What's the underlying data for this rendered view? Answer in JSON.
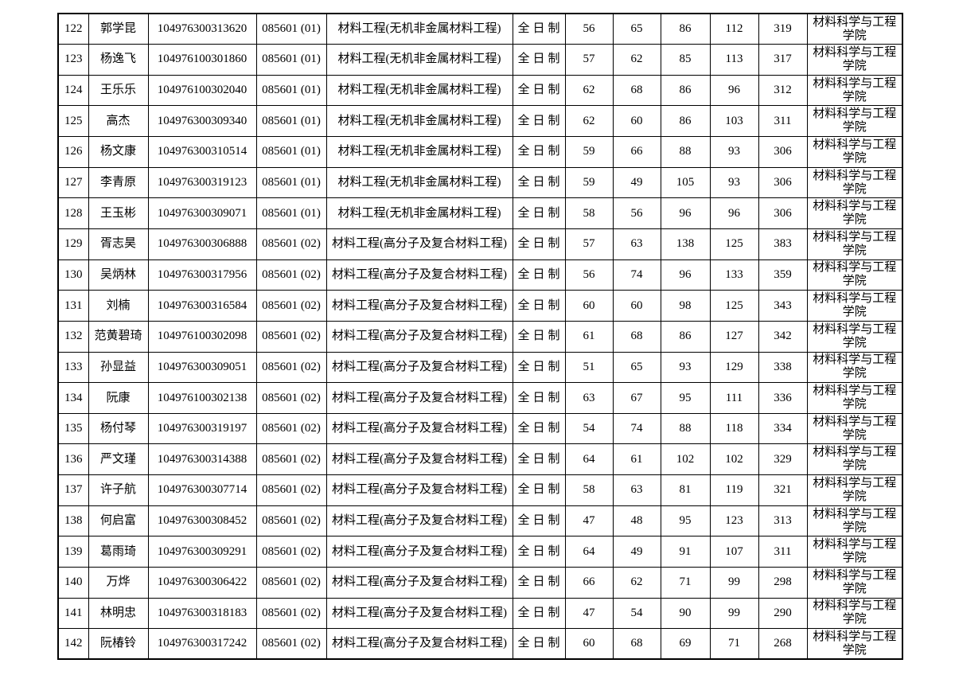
{
  "page": {
    "background_color": "#ffffff",
    "text_color": "#000000",
    "border_color": "#000000"
  },
  "table": {
    "column_fields": [
      "no",
      "name",
      "candidate_id",
      "program_code",
      "major",
      "study_mode",
      "score1",
      "score2",
      "score3",
      "score4",
      "total",
      "college"
    ],
    "rows": [
      {
        "no": "122",
        "name": "郭学昆",
        "candidate_id": "104976300313620",
        "program_code": "085601 (01)",
        "major": "材料工程(无机非金属材料工程)",
        "study_mode": "全日制",
        "score1": "56",
        "score2": "65",
        "score3": "86",
        "score4": "112",
        "total": "319",
        "college": "材料科学与工程学院"
      },
      {
        "no": "123",
        "name": "杨逸飞",
        "candidate_id": "104976100301860",
        "program_code": "085601 (01)",
        "major": "材料工程(无机非金属材料工程)",
        "study_mode": "全日制",
        "score1": "57",
        "score2": "62",
        "score3": "85",
        "score4": "113",
        "total": "317",
        "college": "材料科学与工程学院"
      },
      {
        "no": "124",
        "name": "王乐乐",
        "candidate_id": "104976100302040",
        "program_code": "085601 (01)",
        "major": "材料工程(无机非金属材料工程)",
        "study_mode": "全日制",
        "score1": "62",
        "score2": "68",
        "score3": "86",
        "score4": "96",
        "total": "312",
        "college": "材料科学与工程学院"
      },
      {
        "no": "125",
        "name": "高杰",
        "candidate_id": "104976300309340",
        "program_code": "085601 (01)",
        "major": "材料工程(无机非金属材料工程)",
        "study_mode": "全日制",
        "score1": "62",
        "score2": "60",
        "score3": "86",
        "score4": "103",
        "total": "311",
        "college": "材料科学与工程学院"
      },
      {
        "no": "126",
        "name": "杨文康",
        "candidate_id": "104976300310514",
        "program_code": "085601 (01)",
        "major": "材料工程(无机非金属材料工程)",
        "study_mode": "全日制",
        "score1": "59",
        "score2": "66",
        "score3": "88",
        "score4": "93",
        "total": "306",
        "college": "材料科学与工程学院"
      },
      {
        "no": "127",
        "name": "李青原",
        "candidate_id": "104976300319123",
        "program_code": "085601 (01)",
        "major": "材料工程(无机非金属材料工程)",
        "study_mode": "全日制",
        "score1": "59",
        "score2": "49",
        "score3": "105",
        "score4": "93",
        "total": "306",
        "college": "材料科学与工程学院"
      },
      {
        "no": "128",
        "name": "王玉彬",
        "candidate_id": "104976300309071",
        "program_code": "085601 (01)",
        "major": "材料工程(无机非金属材料工程)",
        "study_mode": "全日制",
        "score1": "58",
        "score2": "56",
        "score3": "96",
        "score4": "96",
        "total": "306",
        "college": "材料科学与工程学院"
      },
      {
        "no": "129",
        "name": "胥志昊",
        "candidate_id": "104976300306888",
        "program_code": "085601 (02)",
        "major": "材料工程(高分子及复合材料工程)",
        "study_mode": "全日制",
        "score1": "57",
        "score2": "63",
        "score3": "138",
        "score4": "125",
        "total": "383",
        "college": "材料科学与工程学院"
      },
      {
        "no": "130",
        "name": "吴炳林",
        "candidate_id": "104976300317956",
        "program_code": "085601 (02)",
        "major": "材料工程(高分子及复合材料工程)",
        "study_mode": "全日制",
        "score1": "56",
        "score2": "74",
        "score3": "96",
        "score4": "133",
        "total": "359",
        "college": "材料科学与工程学院"
      },
      {
        "no": "131",
        "name": "刘楠",
        "candidate_id": "104976300316584",
        "program_code": "085601 (02)",
        "major": "材料工程(高分子及复合材料工程)",
        "study_mode": "全日制",
        "score1": "60",
        "score2": "60",
        "score3": "98",
        "score4": "125",
        "total": "343",
        "college": "材料科学与工程学院"
      },
      {
        "no": "132",
        "name": "范黄碧琦",
        "candidate_id": "104976100302098",
        "program_code": "085601 (02)",
        "major": "材料工程(高分子及复合材料工程)",
        "study_mode": "全日制",
        "score1": "61",
        "score2": "68",
        "score3": "86",
        "score4": "127",
        "total": "342",
        "college": "材料科学与工程学院"
      },
      {
        "no": "133",
        "name": "孙显益",
        "candidate_id": "104976300309051",
        "program_code": "085601 (02)",
        "major": "材料工程(高分子及复合材料工程)",
        "study_mode": "全日制",
        "score1": "51",
        "score2": "65",
        "score3": "93",
        "score4": "129",
        "total": "338",
        "college": "材料科学与工程学院"
      },
      {
        "no": "134",
        "name": "阮康",
        "candidate_id": "104976100302138",
        "program_code": "085601 (02)",
        "major": "材料工程(高分子及复合材料工程)",
        "study_mode": "全日制",
        "score1": "63",
        "score2": "67",
        "score3": "95",
        "score4": "111",
        "total": "336",
        "college": "材料科学与工程学院"
      },
      {
        "no": "135",
        "name": "杨付琴",
        "candidate_id": "104976300319197",
        "program_code": "085601 (02)",
        "major": "材料工程(高分子及复合材料工程)",
        "study_mode": "全日制",
        "score1": "54",
        "score2": "74",
        "score3": "88",
        "score4": "118",
        "total": "334",
        "college": "材料科学与工程学院"
      },
      {
        "no": "136",
        "name": "严文瑾",
        "candidate_id": "104976300314388",
        "program_code": "085601 (02)",
        "major": "材料工程(高分子及复合材料工程)",
        "study_mode": "全日制",
        "score1": "64",
        "score2": "61",
        "score3": "102",
        "score4": "102",
        "total": "329",
        "college": "材料科学与工程学院"
      },
      {
        "no": "137",
        "name": "许子航",
        "candidate_id": "104976300307714",
        "program_code": "085601 (02)",
        "major": "材料工程(高分子及复合材料工程)",
        "study_mode": "全日制",
        "score1": "58",
        "score2": "63",
        "score3": "81",
        "score4": "119",
        "total": "321",
        "college": "材料科学与工程学院"
      },
      {
        "no": "138",
        "name": "何启富",
        "candidate_id": "104976300308452",
        "program_code": "085601 (02)",
        "major": "材料工程(高分子及复合材料工程)",
        "study_mode": "全日制",
        "score1": "47",
        "score2": "48",
        "score3": "95",
        "score4": "123",
        "total": "313",
        "college": "材料科学与工程学院"
      },
      {
        "no": "139",
        "name": "葛雨琦",
        "candidate_id": "104976300309291",
        "program_code": "085601 (02)",
        "major": "材料工程(高分子及复合材料工程)",
        "study_mode": "全日制",
        "score1": "64",
        "score2": "49",
        "score3": "91",
        "score4": "107",
        "total": "311",
        "college": "材料科学与工程学院"
      },
      {
        "no": "140",
        "name": "万烨",
        "candidate_id": "104976300306422",
        "program_code": "085601 (02)",
        "major": "材料工程(高分子及复合材料工程)",
        "study_mode": "全日制",
        "score1": "66",
        "score2": "62",
        "score3": "71",
        "score4": "99",
        "total": "298",
        "college": "材料科学与工程学院"
      },
      {
        "no": "141",
        "name": "林明忠",
        "candidate_id": "104976300318183",
        "program_code": "085601 (02)",
        "major": "材料工程(高分子及复合材料工程)",
        "study_mode": "全日制",
        "score1": "47",
        "score2": "54",
        "score3": "90",
        "score4": "99",
        "total": "290",
        "college": "材料科学与工程学院"
      },
      {
        "no": "142",
        "name": "阮椿铃",
        "candidate_id": "104976300317242",
        "program_code": "085601 (02)",
        "major": "材料工程(高分子及复合材料工程)",
        "study_mode": "全日制",
        "score1": "60",
        "score2": "68",
        "score3": "69",
        "score4": "71",
        "total": "268",
        "college": "材料科学与工程学院"
      }
    ]
  }
}
